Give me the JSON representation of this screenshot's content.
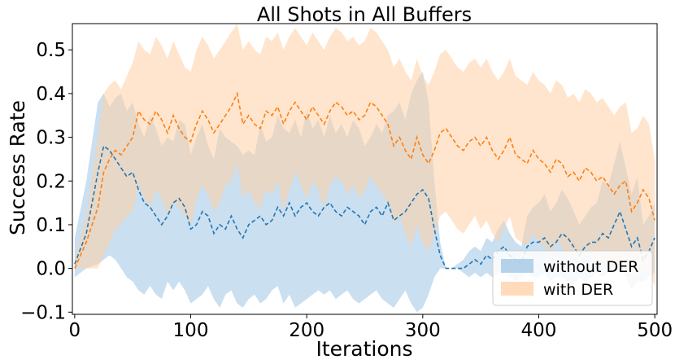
{
  "chart_data": {
    "type": "line",
    "title": "All Shots in All Buffers",
    "xlabel": "Iterations",
    "ylabel": "Success Rate",
    "xlim": [
      -2,
      502
    ],
    "ylim": [
      -0.105,
      0.56
    ],
    "xticks": [
      0,
      100,
      200,
      300,
      400,
      500
    ],
    "xtick_labels": [
      "0",
      "100",
      "200",
      "300",
      "400",
      "500"
    ],
    "yticks": [
      -0.1,
      0.0,
      0.1,
      0.2,
      0.3,
      0.4,
      0.5
    ],
    "ytick_labels": [
      "−0.1",
      "0.0",
      "0.1",
      "0.2",
      "0.3",
      "0.4",
      "0.5"
    ],
    "grid": false,
    "legend_position": "bottom-right",
    "series": [
      {
        "name": "without DER",
        "color": "#1f77b4",
        "band_color": "#9ec5e3",
        "linestyle": "dashed",
        "x": [
          0,
          10,
          20,
          25,
          30,
          35,
          40,
          45,
          50,
          55,
          60,
          65,
          70,
          75,
          80,
          85,
          90,
          95,
          100,
          105,
          110,
          115,
          120,
          125,
          130,
          135,
          140,
          145,
          150,
          155,
          160,
          165,
          170,
          175,
          180,
          185,
          190,
          195,
          200,
          205,
          210,
          215,
          220,
          225,
          230,
          235,
          240,
          245,
          250,
          255,
          260,
          265,
          270,
          275,
          280,
          285,
          290,
          295,
          300,
          305,
          310,
          315,
          320,
          325,
          330,
          335,
          340,
          345,
          350,
          355,
          360,
          365,
          370,
          375,
          380,
          385,
          390,
          395,
          400,
          405,
          410,
          415,
          420,
          425,
          430,
          435,
          440,
          445,
          450,
          455,
          460,
          465,
          470,
          475,
          480,
          485,
          490,
          495,
          500
        ],
        "mean": [
          0.01,
          0.08,
          0.22,
          0.28,
          0.27,
          0.25,
          0.23,
          0.21,
          0.22,
          0.18,
          0.15,
          0.14,
          0.12,
          0.1,
          0.12,
          0.15,
          0.16,
          0.14,
          0.09,
          0.1,
          0.13,
          0.12,
          0.08,
          0.1,
          0.09,
          0.12,
          0.09,
          0.07,
          0.1,
          0.11,
          0.12,
          0.1,
          0.11,
          0.14,
          0.12,
          0.15,
          0.12,
          0.14,
          0.15,
          0.13,
          0.12,
          0.14,
          0.15,
          0.13,
          0.12,
          0.14,
          0.13,
          0.12,
          0.1,
          0.13,
          0.14,
          0.12,
          0.15,
          0.11,
          0.12,
          0.13,
          0.15,
          0.17,
          0.18,
          0.16,
          0.09,
          0.03,
          0.0,
          0.0,
          0.0,
          0.0,
          0.01,
          0.02,
          0.01,
          0.03,
          0.02,
          0.04,
          0.05,
          0.03,
          0.02,
          0.01,
          0.05,
          0.06,
          0.06,
          0.07,
          0.05,
          0.06,
          0.08,
          0.07,
          0.05,
          0.03,
          0.05,
          0.06,
          0.06,
          0.08,
          0.07,
          0.1,
          0.13,
          0.09,
          0.05,
          0.07,
          0.02,
          0.04,
          0.07
        ],
        "lower": [
          -0.02,
          0.0,
          0.01,
          0.02,
          0.03,
          0.02,
          0.0,
          -0.02,
          -0.03,
          -0.05,
          -0.06,
          -0.04,
          -0.06,
          -0.07,
          -0.03,
          -0.05,
          -0.03,
          -0.05,
          -0.08,
          -0.07,
          -0.06,
          -0.04,
          -0.07,
          -0.09,
          -0.06,
          -0.05,
          -0.08,
          -0.09,
          -0.07,
          -0.06,
          -0.08,
          -0.07,
          -0.05,
          -0.04,
          -0.08,
          -0.06,
          -0.09,
          -0.08,
          -0.07,
          -0.06,
          -0.05,
          -0.06,
          -0.05,
          -0.07,
          -0.06,
          -0.05,
          -0.07,
          -0.08,
          -0.07,
          -0.06,
          -0.05,
          -0.07,
          -0.08,
          -0.09,
          -0.07,
          -0.05,
          -0.08,
          -0.1,
          -0.09,
          -0.06,
          -0.02,
          0.0,
          0.0,
          0.0,
          0.0,
          -0.01,
          -0.02,
          -0.01,
          -0.02,
          -0.01,
          -0.02,
          -0.01,
          -0.01,
          -0.02,
          -0.03,
          -0.02,
          -0.01,
          -0.02,
          -0.02,
          -0.01,
          -0.03,
          -0.02,
          -0.02,
          -0.03,
          -0.04,
          -0.02,
          -0.03,
          -0.02,
          -0.01,
          -0.02,
          -0.01,
          -0.01,
          0.0,
          -0.02,
          -0.05,
          -0.03,
          -0.03,
          -0.02,
          -0.01
        ],
        "upper": [
          0.07,
          0.2,
          0.38,
          0.4,
          0.37,
          0.39,
          0.4,
          0.36,
          0.38,
          0.33,
          0.3,
          0.35,
          0.32,
          0.28,
          0.3,
          0.29,
          0.34,
          0.33,
          0.26,
          0.3,
          0.33,
          0.28,
          0.25,
          0.32,
          0.3,
          0.29,
          0.28,
          0.26,
          0.27,
          0.26,
          0.33,
          0.29,
          0.3,
          0.35,
          0.32,
          0.31,
          0.34,
          0.3,
          0.36,
          0.32,
          0.34,
          0.3,
          0.35,
          0.31,
          0.33,
          0.3,
          0.34,
          0.32,
          0.28,
          0.3,
          0.33,
          0.31,
          0.35,
          0.36,
          0.38,
          0.34,
          0.4,
          0.43,
          0.45,
          0.38,
          0.2,
          0.06,
          0.0,
          0.0,
          0.01,
          0.02,
          0.04,
          0.05,
          0.04,
          0.07,
          0.06,
          0.09,
          0.11,
          0.08,
          0.06,
          0.05,
          0.12,
          0.14,
          0.15,
          0.17,
          0.13,
          0.15,
          0.18,
          0.16,
          0.13,
          0.1,
          0.12,
          0.14,
          0.15,
          0.2,
          0.19,
          0.24,
          0.29,
          0.23,
          0.17,
          0.21,
          0.1,
          0.12,
          0.15
        ]
      },
      {
        "name": "with DER",
        "color": "#ff7f0e",
        "band_color": "#ffcfa5",
        "linestyle": "dashed",
        "x": [
          0,
          10,
          20,
          25,
          30,
          35,
          40,
          45,
          50,
          55,
          60,
          65,
          70,
          75,
          80,
          85,
          90,
          95,
          100,
          105,
          110,
          115,
          120,
          125,
          130,
          135,
          140,
          145,
          150,
          155,
          160,
          165,
          170,
          175,
          180,
          185,
          190,
          195,
          200,
          205,
          210,
          215,
          220,
          225,
          230,
          235,
          240,
          245,
          250,
          255,
          260,
          265,
          270,
          275,
          280,
          285,
          290,
          295,
          300,
          305,
          310,
          315,
          320,
          325,
          330,
          335,
          340,
          345,
          350,
          355,
          360,
          365,
          370,
          375,
          380,
          385,
          390,
          395,
          400,
          405,
          410,
          415,
          420,
          425,
          430,
          435,
          440,
          445,
          450,
          455,
          460,
          465,
          470,
          475,
          480,
          485,
          490,
          495,
          500
        ],
        "mean": [
          0.0,
          0.06,
          0.14,
          0.22,
          0.25,
          0.27,
          0.26,
          0.28,
          0.3,
          0.36,
          0.34,
          0.33,
          0.36,
          0.34,
          0.31,
          0.35,
          0.32,
          0.3,
          0.29,
          0.33,
          0.36,
          0.34,
          0.31,
          0.33,
          0.35,
          0.37,
          0.4,
          0.33,
          0.35,
          0.33,
          0.32,
          0.36,
          0.35,
          0.37,
          0.33,
          0.36,
          0.38,
          0.36,
          0.34,
          0.37,
          0.35,
          0.33,
          0.36,
          0.38,
          0.37,
          0.35,
          0.36,
          0.34,
          0.35,
          0.38,
          0.37,
          0.35,
          0.33,
          0.28,
          0.3,
          0.27,
          0.25,
          0.3,
          0.26,
          0.24,
          0.27,
          0.31,
          0.32,
          0.3,
          0.28,
          0.27,
          0.29,
          0.3,
          0.28,
          0.3,
          0.27,
          0.25,
          0.27,
          0.3,
          0.26,
          0.25,
          0.24,
          0.27,
          0.25,
          0.24,
          0.22,
          0.25,
          0.24,
          0.21,
          0.22,
          0.2,
          0.23,
          0.22,
          0.2,
          0.21,
          0.19,
          0.17,
          0.19,
          0.2,
          0.13,
          0.15,
          0.18,
          0.16,
          0.11
        ],
        "lower": [
          0.0,
          0.0,
          0.0,
          0.03,
          0.06,
          0.09,
          0.1,
          0.12,
          0.13,
          0.19,
          0.16,
          0.14,
          0.18,
          0.16,
          0.12,
          0.15,
          0.14,
          0.12,
          0.1,
          0.16,
          0.19,
          0.17,
          0.13,
          0.15,
          0.19,
          0.2,
          0.24,
          0.16,
          0.18,
          0.15,
          0.14,
          0.18,
          0.17,
          0.2,
          0.13,
          0.18,
          0.22,
          0.19,
          0.16,
          0.2,
          0.18,
          0.14,
          0.19,
          0.21,
          0.2,
          0.17,
          0.19,
          0.16,
          0.18,
          0.21,
          0.19,
          0.17,
          0.15,
          0.1,
          0.12,
          0.08,
          0.05,
          0.1,
          0.06,
          0.04,
          0.08,
          0.12,
          0.13,
          0.11,
          0.09,
          0.08,
          0.1,
          0.12,
          0.09,
          0.11,
          0.08,
          0.06,
          0.09,
          0.12,
          0.07,
          0.06,
          0.05,
          0.08,
          0.06,
          0.05,
          0.03,
          0.06,
          0.05,
          0.02,
          0.03,
          0.01,
          0.04,
          0.03,
          0.01,
          0.02,
          0.0,
          -0.01,
          0.0,
          0.01,
          -0.03,
          -0.02,
          0.0,
          -0.01,
          -0.04
        ],
        "upper": [
          0.02,
          0.12,
          0.3,
          0.4,
          0.42,
          0.43,
          0.41,
          0.44,
          0.47,
          0.52,
          0.5,
          0.49,
          0.53,
          0.51,
          0.48,
          0.52,
          0.49,
          0.46,
          0.45,
          0.5,
          0.53,
          0.51,
          0.48,
          0.5,
          0.52,
          0.54,
          0.56,
          0.5,
          0.52,
          0.5,
          0.49,
          0.53,
          0.52,
          0.54,
          0.5,
          0.53,
          0.55,
          0.53,
          0.51,
          0.54,
          0.52,
          0.5,
          0.53,
          0.55,
          0.54,
          0.52,
          0.53,
          0.51,
          0.52,
          0.55,
          0.54,
          0.52,
          0.5,
          0.46,
          0.48,
          0.45,
          0.43,
          0.48,
          0.44,
          0.42,
          0.45,
          0.49,
          0.5,
          0.48,
          0.46,
          0.45,
          0.47,
          0.48,
          0.46,
          0.48,
          0.45,
          0.43,
          0.45,
          0.48,
          0.44,
          0.43,
          0.42,
          0.45,
          0.43,
          0.42,
          0.4,
          0.43,
          0.42,
          0.39,
          0.4,
          0.38,
          0.41,
          0.4,
          0.38,
          0.39,
          0.37,
          0.35,
          0.37,
          0.38,
          0.31,
          0.32,
          0.35,
          0.33,
          0.25
        ]
      }
    ]
  }
}
